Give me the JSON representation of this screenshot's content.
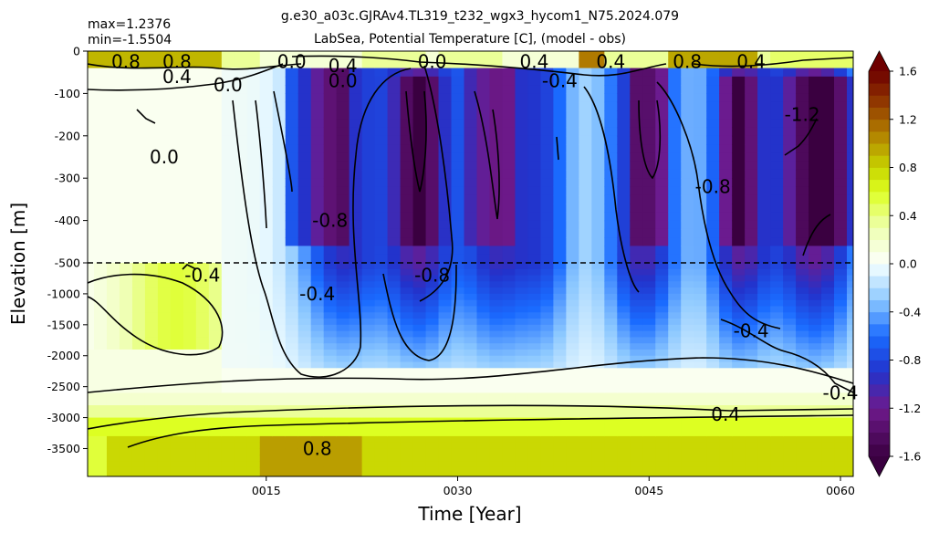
{
  "chart_data": {
    "type": "heatmap",
    "title": "g.e30_a03c.GJRAv4.TL319_t232_wgx3_hycom1_N75.2024.079",
    "subtitle": "LabSea, Potential Temperature [C], (model - obs)",
    "stats": {
      "max_label": "max=1.2376",
      "min_label": "min=-1.5504"
    },
    "xlabel": "Time [Year]",
    "ylabel": "Elevation [m]",
    "xlim": [
      1,
      61
    ],
    "x_ticks": [
      {
        "value": 15,
        "label": "0015"
      },
      {
        "value": 30,
        "label": "0030"
      },
      {
        "value": 45,
        "label": "0045"
      },
      {
        "value": 60,
        "label": "0060"
      }
    ],
    "y_split": {
      "depth": -500,
      "dashed_line": true,
      "upper_range": [
        -500,
        0
      ],
      "lower_range": [
        -3950,
        -500
      ]
    },
    "y_ticks_upper": [
      {
        "value": 0,
        "label": "0"
      },
      {
        "value": -100,
        "label": "-100"
      },
      {
        "value": -200,
        "label": "-200"
      },
      {
        "value": -300,
        "label": "-300"
      },
      {
        "value": -400,
        "label": "-400"
      },
      {
        "value": -500,
        "label": "-500"
      }
    ],
    "y_ticks_lower": [
      {
        "value": -1000,
        "label": "-1000"
      },
      {
        "value": -1500,
        "label": "-1500"
      },
      {
        "value": -2000,
        "label": "-2000"
      },
      {
        "value": -2500,
        "label": "-2500"
      },
      {
        "value": -3000,
        "label": "-3000"
      },
      {
        "value": -3500,
        "label": "-3500"
      }
    ],
    "colorbar": {
      "range": [
        -1.6,
        1.6
      ],
      "extend": "both",
      "ticks": [
        {
          "value": 1.6,
          "label": "1.6"
        },
        {
          "value": 1.2,
          "label": "1.2"
        },
        {
          "value": 0.8,
          "label": "0.8"
        },
        {
          "value": 0.4,
          "label": "0.4"
        },
        {
          "value": 0.0,
          "label": "0.0"
        },
        {
          "value": -0.4,
          "label": "-0.4"
        },
        {
          "value": -0.8,
          "label": "-0.8"
        },
        {
          "value": -1.2,
          "label": "-1.2"
        },
        {
          "value": -1.6,
          "label": "-1.6"
        }
      ],
      "stops": [
        {
          "value": -1.6,
          "color": "#3a0040"
        },
        {
          "value": -1.2,
          "color": "#6e1a8c"
        },
        {
          "value": -0.9,
          "color": "#2233cc"
        },
        {
          "value": -0.6,
          "color": "#1a6bff"
        },
        {
          "value": -0.3,
          "color": "#8cc8ff"
        },
        {
          "value": -0.05,
          "color": "#e6f8ff"
        },
        {
          "value": 0.05,
          "color": "#fafff0"
        },
        {
          "value": 0.3,
          "color": "#eeffb0"
        },
        {
          "value": 0.6,
          "color": "#ddff22"
        },
        {
          "value": 0.8,
          "color": "#c8d400"
        },
        {
          "value": 1.1,
          "color": "#b07a00"
        },
        {
          "value": 1.4,
          "color": "#8a2a00"
        },
        {
          "value": 1.6,
          "color": "#6e0000"
        }
      ],
      "under_color": "#3a0040",
      "over_color": "#6e0000"
    },
    "contour_labels": [
      {
        "text": "0.8",
        "year": 4,
        "depth": -25
      },
      {
        "text": "0.8",
        "year": 8,
        "depth": -25
      },
      {
        "text": "0.4",
        "year": 8,
        "depth": -60
      },
      {
        "text": "0.0",
        "year": 12,
        "depth": -80
      },
      {
        "text": "0.0",
        "year": 7,
        "depth": -250
      },
      {
        "text": "0.0",
        "year": 17,
        "depth": -25
      },
      {
        "text": "0.4",
        "year": 21,
        "depth": -35
      },
      {
        "text": "0.0",
        "year": 21,
        "depth": -70
      },
      {
        "text": "0.0",
        "year": 28,
        "depth": -25
      },
      {
        "text": "0.4",
        "year": 36,
        "depth": -25
      },
      {
        "text": "-0.4",
        "year": 38,
        "depth": -70
      },
      {
        "text": "0.4",
        "year": 42,
        "depth": -25
      },
      {
        "text": "0.8",
        "year": 48,
        "depth": -25
      },
      {
        "text": "0.4",
        "year": 53,
        "depth": -25
      },
      {
        "text": "-1.2",
        "year": 57,
        "depth": -150
      },
      {
        "text": "-0.8",
        "year": 50,
        "depth": -320
      },
      {
        "text": "-0.8",
        "year": 20,
        "depth": -400
      },
      {
        "text": "-0.8",
        "year": 28,
        "depth": -700
      },
      {
        "text": "-0.4",
        "year": 10,
        "depth": -700
      },
      {
        "text": "-0.4",
        "year": 19,
        "depth": -1000
      },
      {
        "text": "-0.4",
        "year": 53,
        "depth": -1600
      },
      {
        "text": "-0.4",
        "year": 60,
        "depth": -2600
      },
      {
        "text": "0.4",
        "year": 51,
        "depth": -2950
      },
      {
        "text": "0.8",
        "year": 19,
        "depth": -3500
      }
    ]
  }
}
